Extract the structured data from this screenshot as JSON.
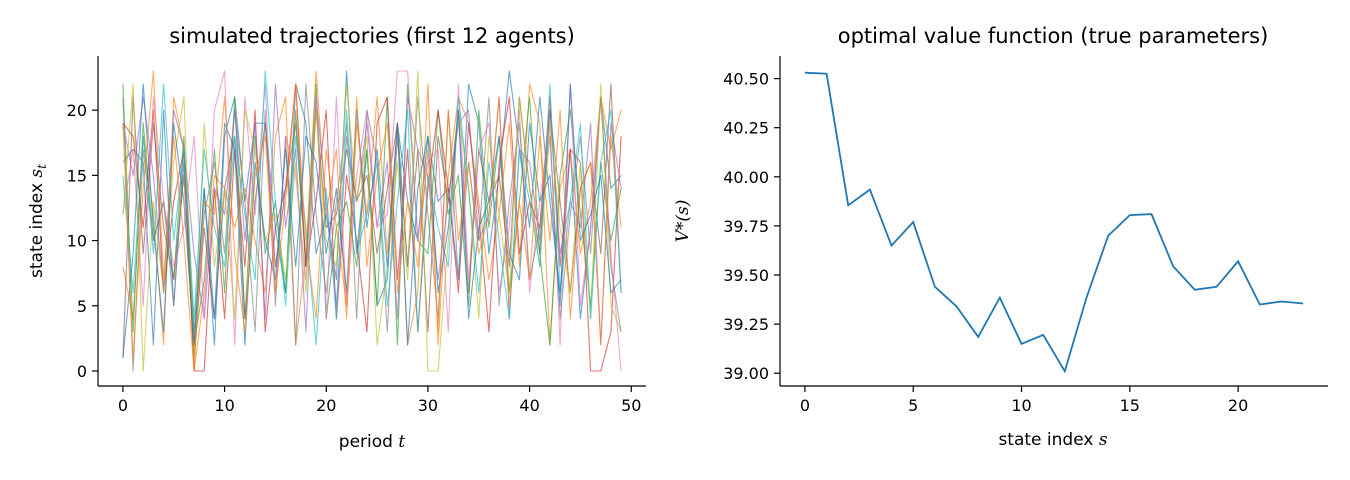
{
  "chart_data": [
    {
      "type": "line",
      "title": "simulated trajectories (first 12 agents)",
      "xlabel": "period",
      "xlabel_var": "t",
      "ylabel": "state index",
      "ylabel_var": "s",
      "ylabel_sub": "t",
      "xlim": [
        -2.45,
        51.45
      ],
      "ylim": [
        -1.15,
        24.15
      ],
      "xticks": [
        0,
        10,
        20,
        30,
        40,
        50
      ],
      "yticks": [
        0,
        5,
        10,
        15,
        20
      ],
      "grid": false,
      "legend": "none",
      "x": [
        0,
        1,
        2,
        3,
        4,
        5,
        6,
        7,
        8,
        9,
        10,
        11,
        12,
        13,
        14,
        15,
        16,
        17,
        18,
        19,
        20,
        21,
        22,
        23,
        24,
        25,
        26,
        27,
        28,
        29,
        30,
        31,
        32,
        33,
        34,
        35,
        36,
        37,
        38,
        39,
        40,
        41,
        42,
        43,
        44,
        45,
        46,
        47,
        48,
        49
      ],
      "series": [
        {
          "color": "#1f77b4",
          "values": [
            16,
            17,
            16,
            2,
            20,
            5,
            16,
            3,
            14,
            2,
            18,
            21,
            13,
            19,
            19,
            11,
            6,
            22,
            19,
            9,
            12,
            7,
            23,
            9,
            17,
            5,
            7,
            19,
            13,
            10,
            18,
            13,
            14,
            7,
            22,
            19,
            9,
            15,
            23,
            17,
            11,
            21,
            13,
            6,
            17,
            4,
            11,
            21,
            14,
            15
          ]
        },
        {
          "color": "#ff7f0e",
          "values": [
            8,
            4,
            18,
            12,
            2,
            21,
            17,
            0,
            6,
            15,
            14,
            11,
            14,
            10,
            6,
            18,
            21,
            2,
            9,
            23,
            12,
            17,
            4,
            19,
            12,
            21,
            9,
            19,
            2,
            6,
            22,
            2,
            15,
            21,
            19,
            13,
            7,
            12,
            19,
            8,
            22,
            19,
            2,
            14,
            17,
            9,
            13,
            21,
            17,
            20
          ]
        },
        {
          "color": "#2ca02c",
          "values": [
            22,
            3,
            19,
            10,
            13,
            7,
            18,
            2,
            7,
            17,
            6,
            21,
            4,
            18,
            9,
            13,
            6,
            20,
            8,
            22,
            4,
            11,
            13,
            8,
            17,
            5,
            21,
            2,
            22,
            10,
            9,
            20,
            12,
            15,
            5,
            20,
            11,
            18,
            6,
            13,
            21,
            9,
            2,
            15,
            20,
            12,
            5,
            16,
            10,
            14
          ]
        },
        {
          "color": "#d62728",
          "values": [
            19,
            18,
            11,
            20,
            6,
            13,
            17,
            0,
            0,
            14,
            4,
            17,
            8,
            20,
            3,
            11,
            14,
            22,
            8,
            13,
            20,
            4,
            15,
            10,
            3,
            19,
            21,
            7,
            17,
            3,
            14,
            20,
            14,
            6,
            19,
            12,
            3,
            16,
            21,
            9,
            13,
            11,
            21,
            8,
            17,
            16,
            0,
            0,
            3,
            18
          ]
        },
        {
          "color": "#9467bd",
          "values": [
            19,
            15,
            21,
            15,
            6,
            20,
            17,
            9,
            4,
            14,
            12,
            20,
            10,
            19,
            4,
            22,
            11,
            17,
            3,
            21,
            13,
            5,
            18,
            13,
            19,
            11,
            16,
            4,
            21,
            17,
            15,
            7,
            13,
            19,
            20,
            10,
            12,
            21,
            4,
            17,
            16,
            10,
            20,
            9,
            13,
            11,
            19,
            2,
            19,
            14
          ]
        },
        {
          "color": "#8c564b",
          "values": [
            1,
            21,
            9,
            19,
            11,
            7,
            15,
            1,
            11,
            4,
            14,
            18,
            4,
            13,
            19,
            8,
            14,
            19,
            8,
            20,
            11,
            12,
            17,
            13,
            15,
            9,
            14,
            19,
            8,
            17,
            3,
            18,
            13,
            20,
            6,
            17,
            13,
            15,
            8,
            21,
            14,
            9,
            20,
            13,
            6,
            14,
            16,
            9,
            22,
            6
          ]
        },
        {
          "color": "#e377c2",
          "values": [
            12,
            17,
            5,
            21,
            13,
            8,
            11,
            18,
            4,
            20,
            23,
            2,
            21,
            12,
            22,
            6,
            18,
            15,
            7,
            21,
            4,
            21,
            5,
            15,
            20,
            11,
            12,
            23,
            23,
            10,
            16,
            17,
            3,
            22,
            7,
            17,
            19,
            6,
            11,
            20,
            6,
            13,
            19,
            2,
            22,
            5,
            11,
            21,
            9,
            0
          ]
        },
        {
          "color": "#7f7f7f",
          "values": [
            21,
            0,
            17,
            10,
            13,
            5,
            17,
            2,
            12,
            16,
            9,
            20,
            13,
            3,
            20,
            5,
            18,
            2,
            22,
            12,
            6,
            13,
            19,
            4,
            20,
            16,
            3,
            18,
            8,
            21,
            12,
            4,
            20,
            7,
            16,
            10,
            21,
            5,
            13,
            19,
            7,
            11,
            18,
            4,
            12,
            18,
            9,
            21,
            8,
            3
          ]
        },
        {
          "color": "#bcbd22",
          "values": [
            12,
            22,
            0,
            13,
            6,
            16,
            21,
            1,
            19,
            8,
            14,
            4,
            20,
            17,
            10,
            12,
            7,
            16,
            6,
            20,
            10,
            8,
            22,
            13,
            18,
            2,
            8,
            16,
            7,
            23,
            0,
            0,
            10,
            20,
            14,
            4,
            18,
            12,
            6,
            21,
            14,
            8,
            19,
            11,
            6,
            16,
            4,
            22,
            5,
            3
          ]
        },
        {
          "color": "#17becf",
          "values": [
            15,
            6,
            18,
            9,
            22,
            10,
            17,
            4,
            17,
            11,
            8,
            18,
            12,
            7,
            23,
            13,
            5,
            18,
            11,
            2,
            14,
            4,
            20,
            9,
            12,
            16,
            5,
            13,
            20,
            3,
            15,
            11,
            8,
            21,
            14,
            6,
            16,
            10,
            4,
            17,
            13,
            8,
            22,
            6,
            13,
            19,
            4,
            16,
            20,
            6
          ]
        },
        {
          "color": "#1f77b4",
          "values": [
            1,
            9,
            22,
            11,
            3,
            19,
            13,
            2,
            14,
            4,
            19,
            17,
            2,
            16,
            10,
            7,
            17,
            8,
            18,
            16,
            9,
            14,
            6,
            20,
            11,
            17,
            8,
            19,
            2,
            14,
            18,
            6,
            11,
            20,
            4,
            11,
            13,
            18,
            9,
            7,
            19,
            13,
            15,
            5,
            22,
            10,
            12,
            15,
            6,
            7
          ]
        },
        {
          "color": "#ff7f0e",
          "values": [
            19,
            1,
            14,
            23,
            7,
            18,
            10,
            0,
            13,
            12,
            21,
            9,
            3,
            15,
            18,
            6,
            13,
            22,
            10,
            4,
            17,
            11,
            5,
            21,
            8,
            15,
            19,
            6,
            13,
            8,
            17,
            3,
            20,
            10,
            16,
            9,
            12,
            21,
            5,
            13,
            7,
            18,
            10,
            20,
            4,
            14,
            16,
            2,
            18,
            11
          ]
        }
      ]
    },
    {
      "type": "line",
      "title": "optimal value function (true parameters)",
      "xlabel": "state index",
      "xlabel_var": "s",
      "ylabel": "V*(s)",
      "xlim": [
        -1.15,
        24.15
      ],
      "ylim": [
        38.935,
        40.615
      ],
      "xticks": [
        0,
        5,
        10,
        15,
        20
      ],
      "yticks": [
        39.0,
        39.25,
        39.5,
        39.75,
        40.0,
        40.25,
        40.5
      ],
      "ytick_labels": [
        "39.00",
        "39.25",
        "39.50",
        "39.75",
        "40.00",
        "40.25",
        "40.50"
      ],
      "grid": false,
      "legend": "none",
      "x": [
        0,
        1,
        2,
        3,
        4,
        5,
        6,
        7,
        8,
        9,
        10,
        11,
        12,
        13,
        14,
        15,
        16,
        17,
        18,
        19,
        20,
        21,
        22,
        23
      ],
      "series": [
        {
          "color": "#1f77b4",
          "values": [
            40.53,
            40.525,
            39.855,
            39.935,
            39.65,
            39.77,
            39.44,
            39.34,
            39.185,
            39.385,
            39.15,
            39.195,
            39.01,
            39.385,
            39.7,
            39.805,
            39.81,
            39.545,
            39.425,
            39.44,
            39.57,
            39.35,
            39.365,
            39.355
          ]
        }
      ]
    }
  ]
}
